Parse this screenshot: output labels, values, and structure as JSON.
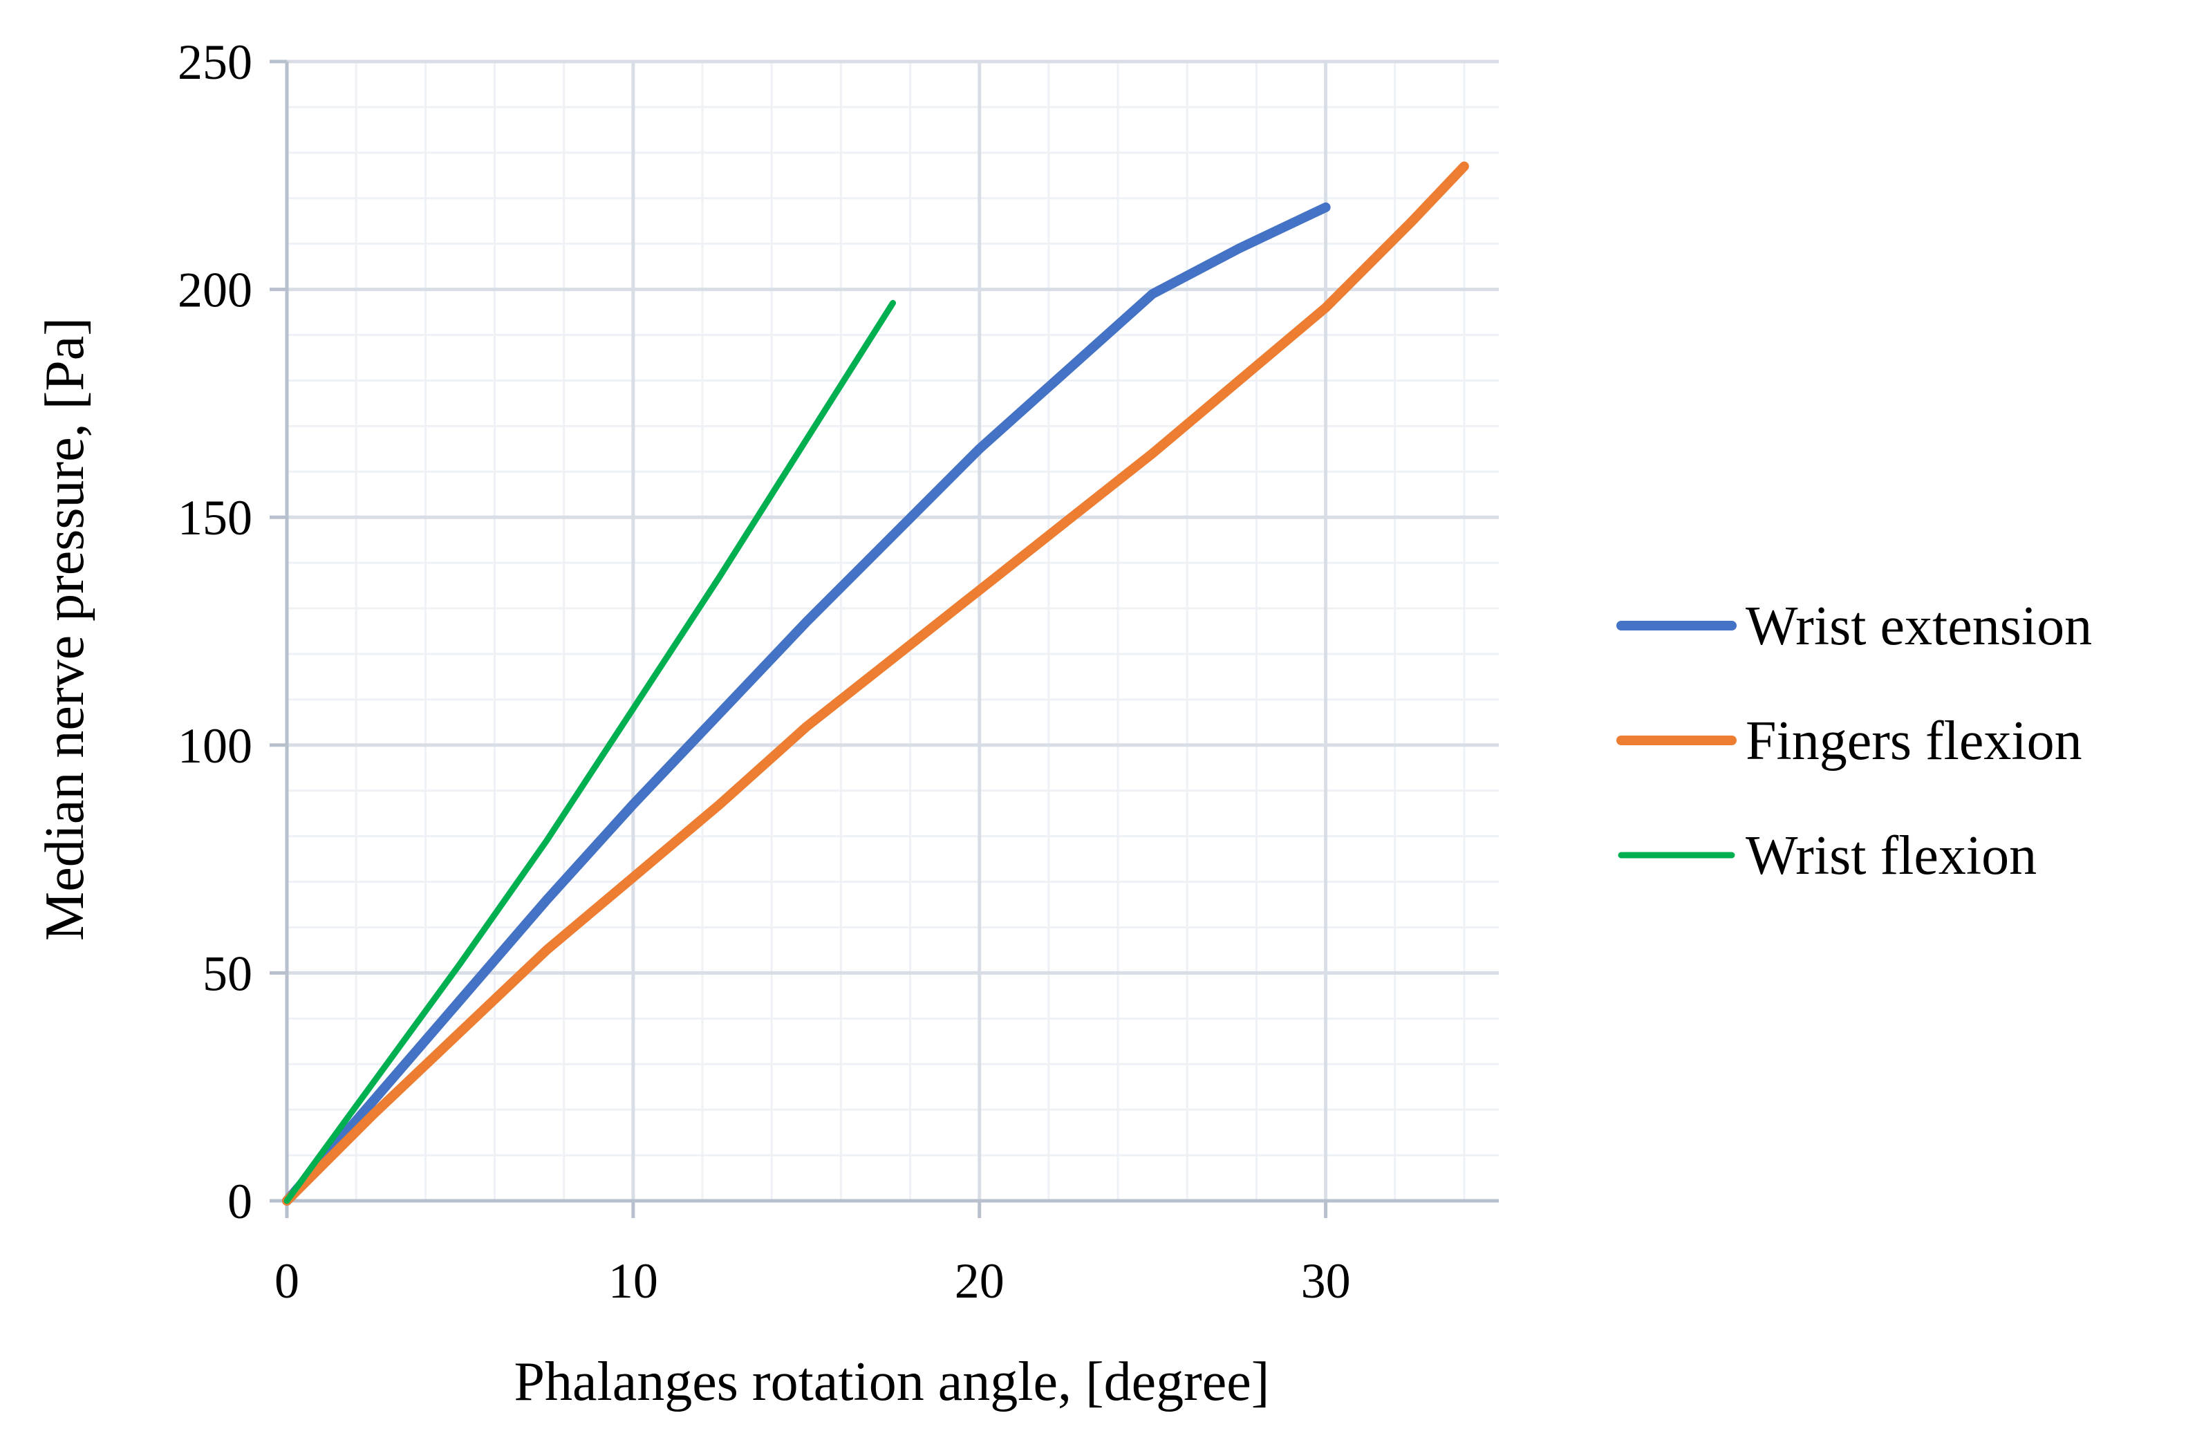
{
  "chart_data": {
    "type": "line",
    "title": "",
    "xlabel": "Phalanges rotation angle, [degree]",
    "ylabel": "Median nerve pressure, [Pa]",
    "xlim": [
      0,
      35
    ],
    "ylim": [
      0,
      250
    ],
    "x_ticks": [
      0,
      10,
      20,
      30
    ],
    "y_ticks": [
      0,
      50,
      100,
      150,
      200,
      250
    ],
    "x_minor_step": 2,
    "y_minor_step": 10,
    "grid": true,
    "legend_position": "right",
    "series": [
      {
        "name": "Wrist extension",
        "color": "#4472c4",
        "x": [
          0,
          2.5,
          5,
          7.5,
          10,
          12.5,
          15,
          17.5,
          20,
          22.5,
          25,
          27.5,
          30
        ],
        "y": [
          0,
          22,
          44,
          66,
          87,
          107,
          127,
          146,
          165,
          182,
          199,
          209,
          218
        ]
      },
      {
        "name": "Fingers flexion",
        "color": "#ed7d31",
        "x": [
          0,
          2.5,
          5,
          7.5,
          10,
          12.5,
          15,
          17.5,
          20,
          22.5,
          25,
          27.5,
          30,
          32.5,
          34
        ],
        "y": [
          0,
          19,
          37,
          55,
          71,
          87,
          104,
          119,
          134,
          149,
          164,
          180,
          196,
          215,
          227
        ]
      },
      {
        "name": "Wrist flexion",
        "color": "#00b050",
        "x": [
          0,
          2.5,
          5,
          7.5,
          10,
          12.5,
          15,
          17.5
        ],
        "y": [
          0,
          26,
          52,
          79,
          108,
          137,
          167,
          197
        ]
      }
    ]
  }
}
